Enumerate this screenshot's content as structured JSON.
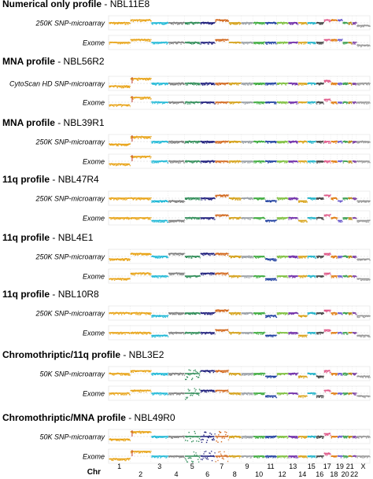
{
  "chart_data": {
    "type": "scatter",
    "title": "",
    "xlabel": "Chr",
    "ylabel": "",
    "chromosomes": [
      "1",
      "2",
      "3",
      "4",
      "5",
      "6",
      "7",
      "8",
      "9",
      "10",
      "11",
      "12",
      "13",
      "14",
      "15",
      "16",
      "17",
      "18",
      "19",
      "20",
      "21",
      "22",
      "X"
    ],
    "x_tick_labels": [
      "1",
      "2",
      "3",
      "4",
      "5",
      "6",
      "7",
      "8",
      "9",
      "10",
      "11",
      "12",
      "13",
      "14",
      "15",
      "16",
      "17",
      "18",
      "19",
      "20",
      "21",
      "22",
      "X"
    ],
    "panels": [
      {
        "profile": "Numerical only profile",
        "sample": "NBL11E8",
        "tracks": [
          {
            "platform": "250K SNP-microarray",
            "segments": {
              "2": "gain",
              "7": "gain",
              "17": "gain",
              "18": "gain",
              "19": "gain",
              "X": "loss"
            }
          },
          {
            "platform": "Exome",
            "segments": {
              "2": "gain",
              "7": "gain",
              "17": "gain",
              "18": "gain",
              "19": "gain",
              "X": "loss"
            }
          }
        ]
      },
      {
        "profile": "MNA profile",
        "sample": "NBL56R2",
        "tracks": [
          {
            "platform": "CytoScan HD SNP-microarray",
            "segments": {
              "1": "loss",
              "2": "amp",
              "17": "gain"
            }
          },
          {
            "platform": "Exome",
            "segments": {
              "1": "loss",
              "2": "amp",
              "17": "gain"
            }
          }
        ]
      },
      {
        "profile": "MNA profile",
        "sample": "NBL39R1",
        "tracks": [
          {
            "platform": "250K SNP-microarray",
            "segments": {
              "1": "loss",
              "2": "amp"
            }
          },
          {
            "platform": "Exome",
            "segments": {
              "1": "loss",
              "2": "amp"
            }
          }
        ]
      },
      {
        "profile": "11q profile",
        "sample": "NBL47R4",
        "tracks": [
          {
            "platform": "250K SNP-microarray",
            "segments": {
              "3": "loss",
              "4": "loss",
              "7": "gain",
              "11": "loss",
              "14": "loss",
              "17": "gain",
              "19": "loss",
              "X": "loss"
            }
          },
          {
            "platform": "Exome",
            "segments": {
              "3": "loss",
              "4": "loss",
              "7": "gain",
              "11": "loss",
              "14": "loss",
              "17": "gain",
              "19": "loss",
              "X": "loss"
            }
          }
        ]
      },
      {
        "profile": "11q profile",
        "sample": "NBL4E1",
        "tracks": [
          {
            "platform": "250K SNP-microarray",
            "segments": {
              "1": "loss",
              "2": "gain",
              "4": "gain",
              "6": "gain",
              "7": "gain",
              "11": "loss",
              "17": "gain",
              "X": "loss"
            }
          },
          {
            "platform": "Exome",
            "segments": {
              "1": "loss",
              "2": "gain",
              "4": "gain",
              "6": "gain",
              "7": "gain",
              "11": "loss",
              "17": "gain",
              "X": "loss"
            }
          }
        ]
      },
      {
        "profile": "11q profile",
        "sample": "NBL10R8",
        "tracks": [
          {
            "platform": "250K SNP-microarray",
            "segments": {
              "3": "loss",
              "7": "gain",
              "11": "loss",
              "14": "loss",
              "17": "gain",
              "X": "loss"
            }
          },
          {
            "platform": "Exome",
            "segments": {
              "3": "loss",
              "7": "gain",
              "11": "loss",
              "14": "loss",
              "17": "gain",
              "X": "loss"
            }
          }
        ]
      },
      {
        "profile": "Chromothriptic/11q profile",
        "sample": "NBL3E2",
        "tracks": [
          {
            "platform": "50K SNP-microarray",
            "segments": {
              "2": "gain",
              "5": "complex",
              "6": "gain",
              "7": "gain",
              "11": "loss",
              "14": "loss",
              "16": "loss",
              "17": "gain",
              "X": "loss"
            }
          },
          {
            "platform": "Exome",
            "segments": {
              "2": "gain",
              "5": "complex",
              "6": "gain",
              "7": "gain",
              "11": "loss",
              "14": "loss",
              "16": "loss",
              "17": "gain",
              "X": "loss"
            }
          }
        ]
      },
      {
        "profile": "Chromothriptic/MNA profile",
        "sample": "NBL49R0",
        "tracks": [
          {
            "platform": "50K SNP-microarray",
            "segments": {
              "1": "loss",
              "2": "amp",
              "5": "complex",
              "6": "complex",
              "7": "complex",
              "17": "gain"
            }
          },
          {
            "platform": "Exome",
            "segments": {
              "1": "loss",
              "2": "amp",
              "5": "complex",
              "6": "complex",
              "7": "complex",
              "17": "gain"
            }
          }
        ]
      }
    ]
  },
  "colors": {
    "1": "#e8a317",
    "2": "#e8a317",
    "3": "#1fb8d6",
    "4": "#7f7f7f",
    "5": "#2e8b57",
    "6": "#1c1c7a",
    "7": "#d2691e",
    "8": "#d4a017",
    "9": "#9aa0a6",
    "10": "#3caa3c",
    "11": "#2040a0",
    "12": "#7fbf3f",
    "13": "#6f2da8",
    "14": "#d9a41c",
    "15": "#20b2c8",
    "16": "#444444",
    "17": "#e05a8a",
    "18": "#e07b10",
    "19": "#6a5acd",
    "20": "#3a9f4f",
    "21": "#b8860b",
    "22": "#7b3fa0",
    "X": "#9a9a9a"
  }
}
